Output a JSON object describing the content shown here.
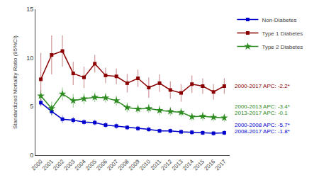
{
  "chart_data": {
    "type": "line",
    "y_label": "Standardized Mortality Ratio (95%CI)",
    "x": [
      2000,
      2001,
      2002,
      2003,
      2004,
      2005,
      2006,
      2007,
      2008,
      2009,
      2010,
      2011,
      2012,
      2013,
      2014,
      2015,
      2016,
      2017
    ],
    "xlim": [
      1999.5,
      2017.5
    ],
    "xticks": [
      2000,
      2001,
      2002,
      2003,
      2004,
      2005,
      2006,
      2007,
      2008,
      2009,
      2010,
      2011,
      2012,
      2013,
      2014,
      2015,
      2016,
      2017
    ],
    "ylim": [
      0,
      15
    ],
    "yticks": [
      0,
      5,
      10,
      15
    ],
    "grid": false,
    "legend": "upper right",
    "series": [
      {
        "name": "Non-Diabetes",
        "color": "#0000CC",
        "marker": "square",
        "values": [
          5.4,
          4.5,
          3.7,
          3.6,
          3.4,
          3.35,
          3.1,
          3.0,
          2.85,
          2.75,
          2.65,
          2.5,
          2.5,
          2.4,
          2.35,
          2.3,
          2.25,
          2.3
        ],
        "upper": [
          5.8,
          4.9,
          4.1,
          3.95,
          3.7,
          3.65,
          3.4,
          3.3,
          3.1,
          3.0,
          2.9,
          2.75,
          2.75,
          2.65,
          2.6,
          2.55,
          2.5,
          2.55
        ],
        "lower": [
          5.0,
          4.1,
          3.3,
          3.25,
          3.1,
          3.05,
          2.8,
          2.7,
          2.6,
          2.5,
          2.4,
          2.25,
          2.25,
          2.15,
          2.1,
          2.05,
          2.0,
          2.05
        ]
      },
      {
        "name": "Type 1 Diabetes",
        "color": "#8B0000",
        "marker": "square",
        "values": [
          7.8,
          10.3,
          10.7,
          8.4,
          8.0,
          9.4,
          8.2,
          8.1,
          7.4,
          7.9,
          6.95,
          7.4,
          6.7,
          6.4,
          7.3,
          7.1,
          6.5,
          7.1
        ],
        "upper": [
          10.5,
          12.3,
          12.3,
          9.6,
          9.1,
          10.3,
          9.0,
          8.9,
          8.35,
          8.8,
          8.0,
          8.3,
          7.6,
          7.3,
          8.2,
          7.9,
          7.3,
          7.9
        ],
        "lower": [
          5.1,
          8.3,
          9.1,
          7.2,
          6.9,
          8.5,
          7.4,
          7.3,
          6.45,
          7.0,
          5.9,
          6.5,
          5.8,
          5.5,
          6.4,
          6.3,
          5.7,
          6.3
        ]
      },
      {
        "name": "Type 2 Diabetes",
        "color": "#2E8B22",
        "marker": "star",
        "values": [
          6.1,
          4.8,
          6.3,
          5.6,
          5.8,
          5.95,
          5.9,
          5.6,
          4.9,
          4.75,
          4.8,
          4.6,
          4.5,
          4.4,
          3.95,
          4.0,
          3.9,
          3.85
        ],
        "upper": [
          6.7,
          5.5,
          6.95,
          6.3,
          6.35,
          6.45,
          6.4,
          6.1,
          5.4,
          5.2,
          5.25,
          5.1,
          4.95,
          4.85,
          4.35,
          4.45,
          4.3,
          4.25
        ],
        "lower": [
          5.5,
          4.1,
          5.65,
          4.9,
          5.25,
          5.45,
          5.4,
          5.1,
          4.4,
          4.3,
          4.35,
          4.1,
          4.05,
          3.95,
          3.55,
          3.55,
          3.5,
          3.45
        ]
      }
    ],
    "annotations": [
      {
        "text": "2000-2017 APC: -2.2*",
        "y": 7.1,
        "color": "#8B0000"
      },
      {
        "text": "2000-2013 APC: -3.4*",
        "y": 5.0,
        "color": "#2E8B22"
      },
      {
        "text": "2013-2017 APC: -0.1",
        "y": 4.3,
        "color": "#2E8B22"
      },
      {
        "text": "2000-2008 APC: -5.7*",
        "y": 3.1,
        "color": "#0000CC"
      },
      {
        "text": "2008-2017 APC: -1.8*",
        "y": 2.45,
        "color": "#0000CC"
      }
    ]
  }
}
